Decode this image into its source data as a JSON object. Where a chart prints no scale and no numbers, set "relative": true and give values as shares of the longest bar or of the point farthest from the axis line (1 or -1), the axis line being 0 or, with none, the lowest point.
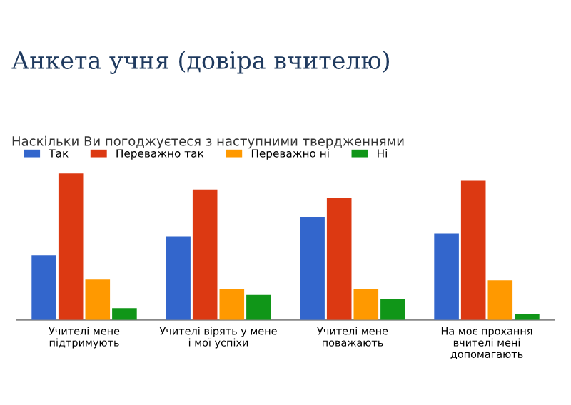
{
  "chart_data": {
    "type": "bar",
    "title": "Анкета учня (довіра вчителю)",
    "subtitle": "Наскільки Ви погоджуєтеся з наступними твердженнями",
    "categories": [
      "Учителі мене підтримують",
      "Учителі вірять у мене і мої успіхи",
      "Учителі мене поважають",
      "На моє прохання вчителі мені допомагають"
    ],
    "series": [
      {
        "name": "Так",
        "color": "#3366cc",
        "values": [
          0.44,
          0.57,
          0.7,
          0.59
        ]
      },
      {
        "name": "Переважно так",
        "color": "#dc3912",
        "values": [
          1.0,
          0.89,
          0.83,
          0.95
        ]
      },
      {
        "name": "Переважно ні",
        "color": "#ff9900",
        "values": [
          0.28,
          0.21,
          0.21,
          0.27
        ]
      },
      {
        "name": "Ні",
        "color": "#109618",
        "values": [
          0.08,
          0.17,
          0.14,
          0.04
        ]
      }
    ],
    "relative": true,
    "legend": "top left"
  }
}
